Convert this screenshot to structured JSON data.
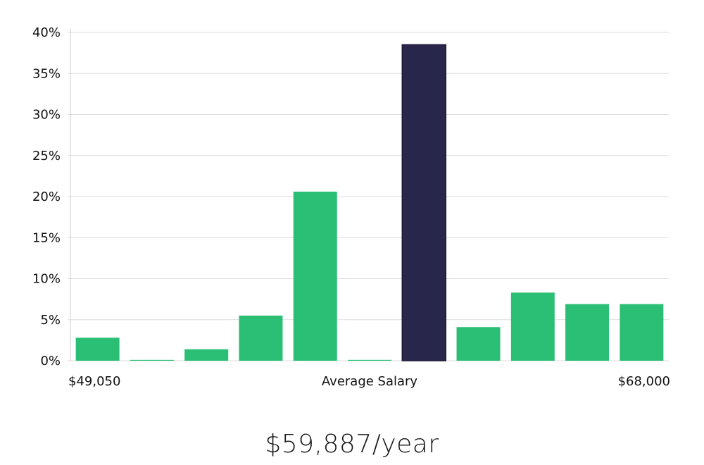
{
  "chart_data": {
    "type": "bar",
    "title": "",
    "ylabel": "",
    "ylim": [
      0,
      40
    ],
    "yticks": [
      "0%",
      "5%",
      "10%",
      "15%",
      "20%",
      "25%",
      "30%",
      "35%",
      "40%"
    ],
    "ytick_values": [
      0,
      5,
      10,
      15,
      20,
      25,
      30,
      35,
      40
    ],
    "grid": true,
    "x_min_label": "$49,050",
    "x_center_label": "Average Salary",
    "x_max_label": "$68,000",
    "values": [
      2.8,
      0.1,
      1.4,
      5.5,
      20.6,
      0.1,
      38.5,
      4.1,
      8.3,
      6.9,
      6.9
    ],
    "highlight_index": 6,
    "colors": {
      "bar": "#2bbf75",
      "highlight": "#28264a",
      "grid": "#dddddd",
      "axis": "#cccccc"
    }
  },
  "summary": {
    "salary": "$59,887/year"
  }
}
